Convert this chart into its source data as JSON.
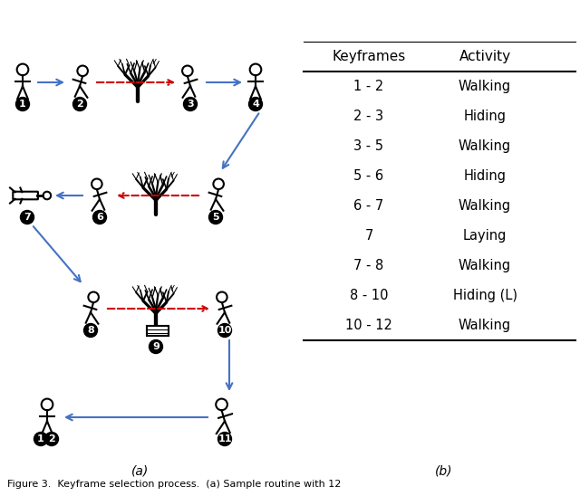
{
  "table_keyframes": [
    "1 - 2",
    "2 - 3",
    "3 - 5",
    "5 - 6",
    "6 - 7",
    "7",
    "7 - 8",
    "8 - 10",
    "10 - 12"
  ],
  "table_activities": [
    "Walking",
    "Hiding",
    "Walking",
    "Hiding",
    "Walking",
    "Laying",
    "Walking",
    "Hiding (L)",
    "Walking"
  ],
  "table_header": [
    "Keyframes",
    "Activity"
  ],
  "caption_a": "(a)",
  "caption_b": "(b)",
  "figure_caption": "Figure 3.  Keyframe selection process.  (a) Sample routine with 12",
  "bg_color": "#ffffff",
  "blue_arrow": "#4472C4",
  "red_dashed": "#cc0000",
  "black": "#000000",
  "label_bg": "#000000",
  "label_fg": "#ffffff"
}
